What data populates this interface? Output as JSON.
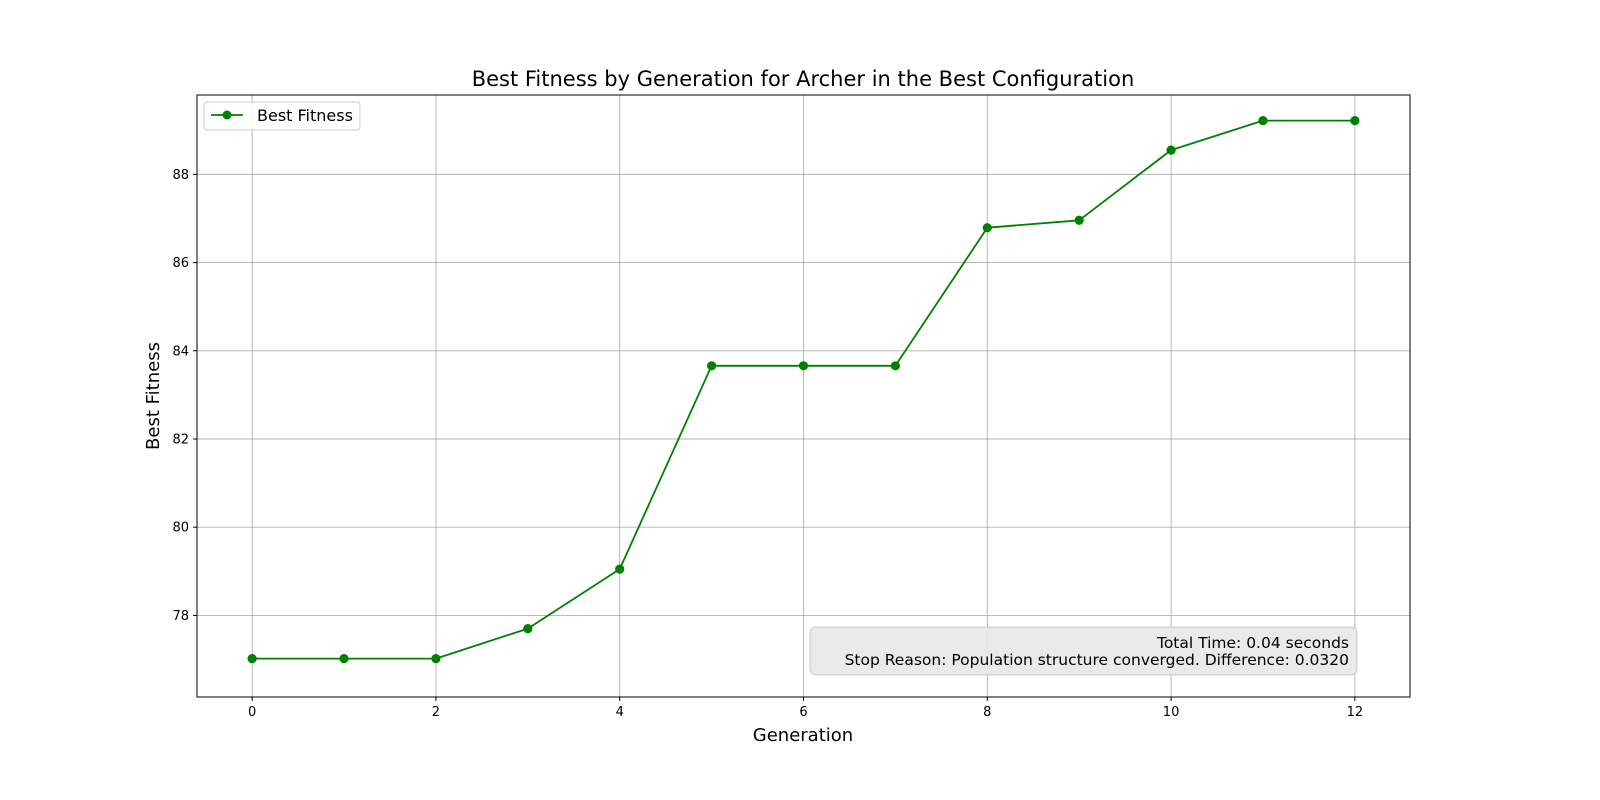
{
  "chart_data": {
    "type": "line",
    "title": "Best Fitness by Generation for Archer in the Best Configuration",
    "xlabel": "Generation",
    "ylabel": "Best Fitness",
    "xlim": [
      -0.6,
      12.6
    ],
    "ylim": [
      76.15,
      89.8
    ],
    "xticks": [
      0,
      2,
      4,
      6,
      8,
      10,
      12
    ],
    "yticks": [
      78,
      80,
      82,
      84,
      86,
      88
    ],
    "grid": true,
    "legend_position": "top-left",
    "series": [
      {
        "name": "Best Fitness",
        "color": "#008000",
        "marker": "circle",
        "x": [
          0,
          1,
          2,
          3,
          4,
          5,
          6,
          7,
          8,
          9,
          10,
          11,
          12
        ],
        "y": [
          77.02,
          77.02,
          77.02,
          77.7,
          79.05,
          83.66,
          83.66,
          83.66,
          86.79,
          86.96,
          88.55,
          89.22,
          89.22
        ]
      }
    ],
    "annotation": {
      "lines": [
        "Total Time: 0.04 seconds",
        "Stop Reason: Population structure converged. Difference: 0.0320"
      ],
      "position": "bottom-right"
    }
  }
}
